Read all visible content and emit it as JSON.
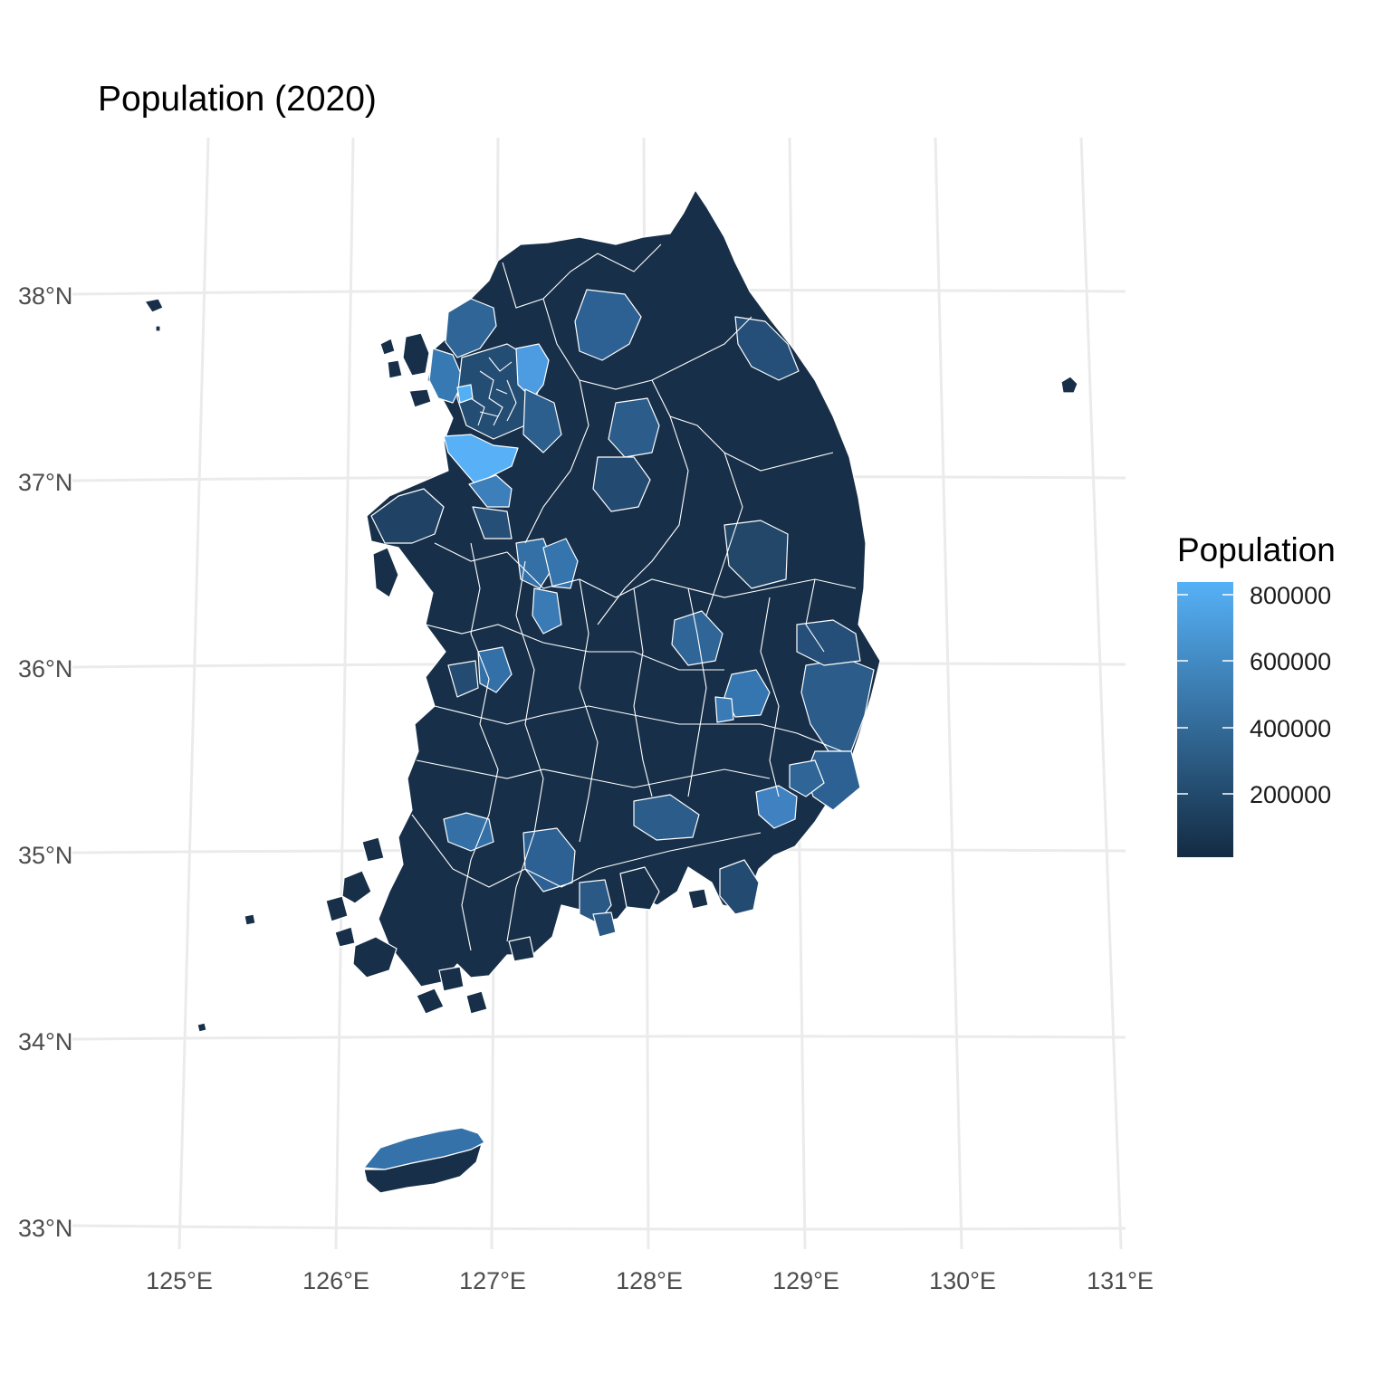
{
  "title": "Population (2020)",
  "map": {
    "region": "South Korea",
    "projection": "conic (tilted graticule)",
    "lon_ticks": [
      "125°E",
      "126°E",
      "127°E",
      "128°E",
      "129°E",
      "130°E",
      "131°E"
    ],
    "lat_ticks": [
      "38°N",
      "37°N",
      "36°N",
      "35°N",
      "34°N",
      "33°N"
    ],
    "grid": true
  },
  "legend": {
    "title": "Population",
    "placement": "right",
    "ticks": [
      "800000",
      "600000",
      "400000",
      "200000"
    ],
    "range": [
      0,
      850000
    ],
    "colors": {
      "low": "#132b43",
      "high": "#56b1f7"
    }
  },
  "chart_data": {
    "type": "choropleth",
    "title": "Population (2020)",
    "fill_variable": "Population",
    "lon_range": [
      125,
      131
    ],
    "lat_range": [
      33,
      38
    ],
    "color_scale": {
      "low": "#132b43",
      "high": "#56b1f7",
      "breaks": [
        200000,
        400000,
        600000,
        800000
      ]
    }
  }
}
